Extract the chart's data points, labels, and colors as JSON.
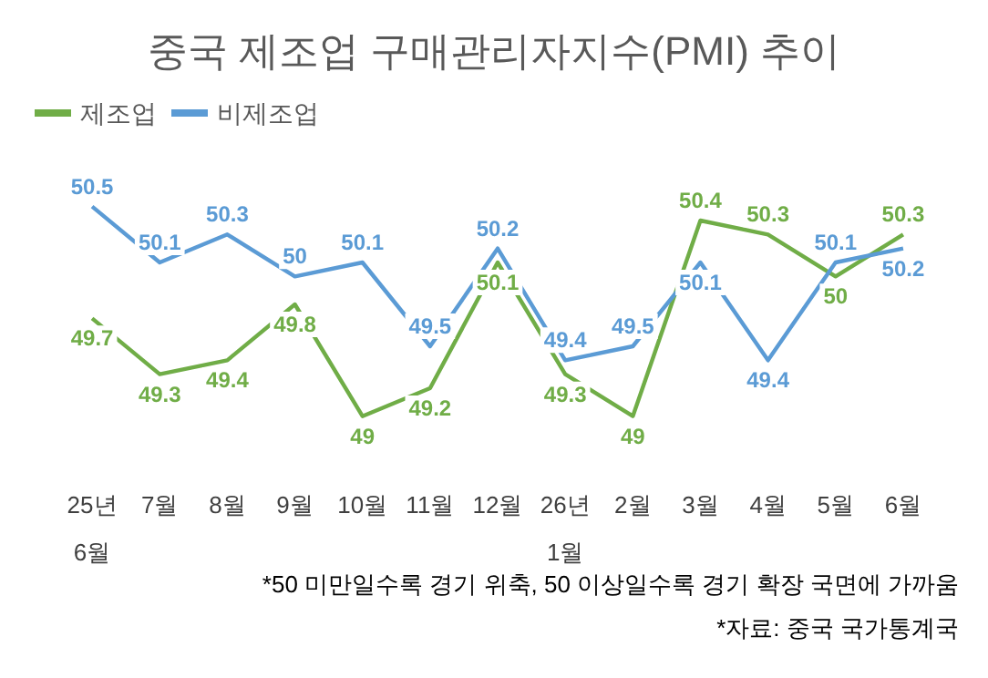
{
  "chart_data": {
    "type": "line",
    "title": "중국 제조업 구매관리자지수(PMI) 추이",
    "categories": [
      "25년\n6월",
      "7월",
      "8월",
      "9월",
      "10월",
      "11월",
      "12월",
      "26년\n1월",
      "2월",
      "3월",
      "4월",
      "5월",
      "6월"
    ],
    "series": [
      {
        "name": "제조업",
        "color": "#70ad47",
        "values": [
          49.7,
          49.3,
          49.4,
          49.8,
          49,
          49.2,
          50.1,
          49.3,
          49,
          50.4,
          50.3,
          50,
          50.3
        ]
      },
      {
        "name": "비제조업",
        "color": "#5b9bd5",
        "values": [
          50.5,
          50.1,
          50.3,
          50,
          50.1,
          49.5,
          50.2,
          49.4,
          49.5,
          50.1,
          49.4,
          50.1,
          50.2
        ]
      }
    ],
    "data_labels": true,
    "legend": "top left",
    "grid": false,
    "marker": "none",
    "tick_labels": "x",
    "annotations": [
      "*50 미만일수록 경기 위축, 50 이상일수록 경기 확장 국면에 가까움",
      "*자료: 중국 국가통계국"
    ]
  }
}
